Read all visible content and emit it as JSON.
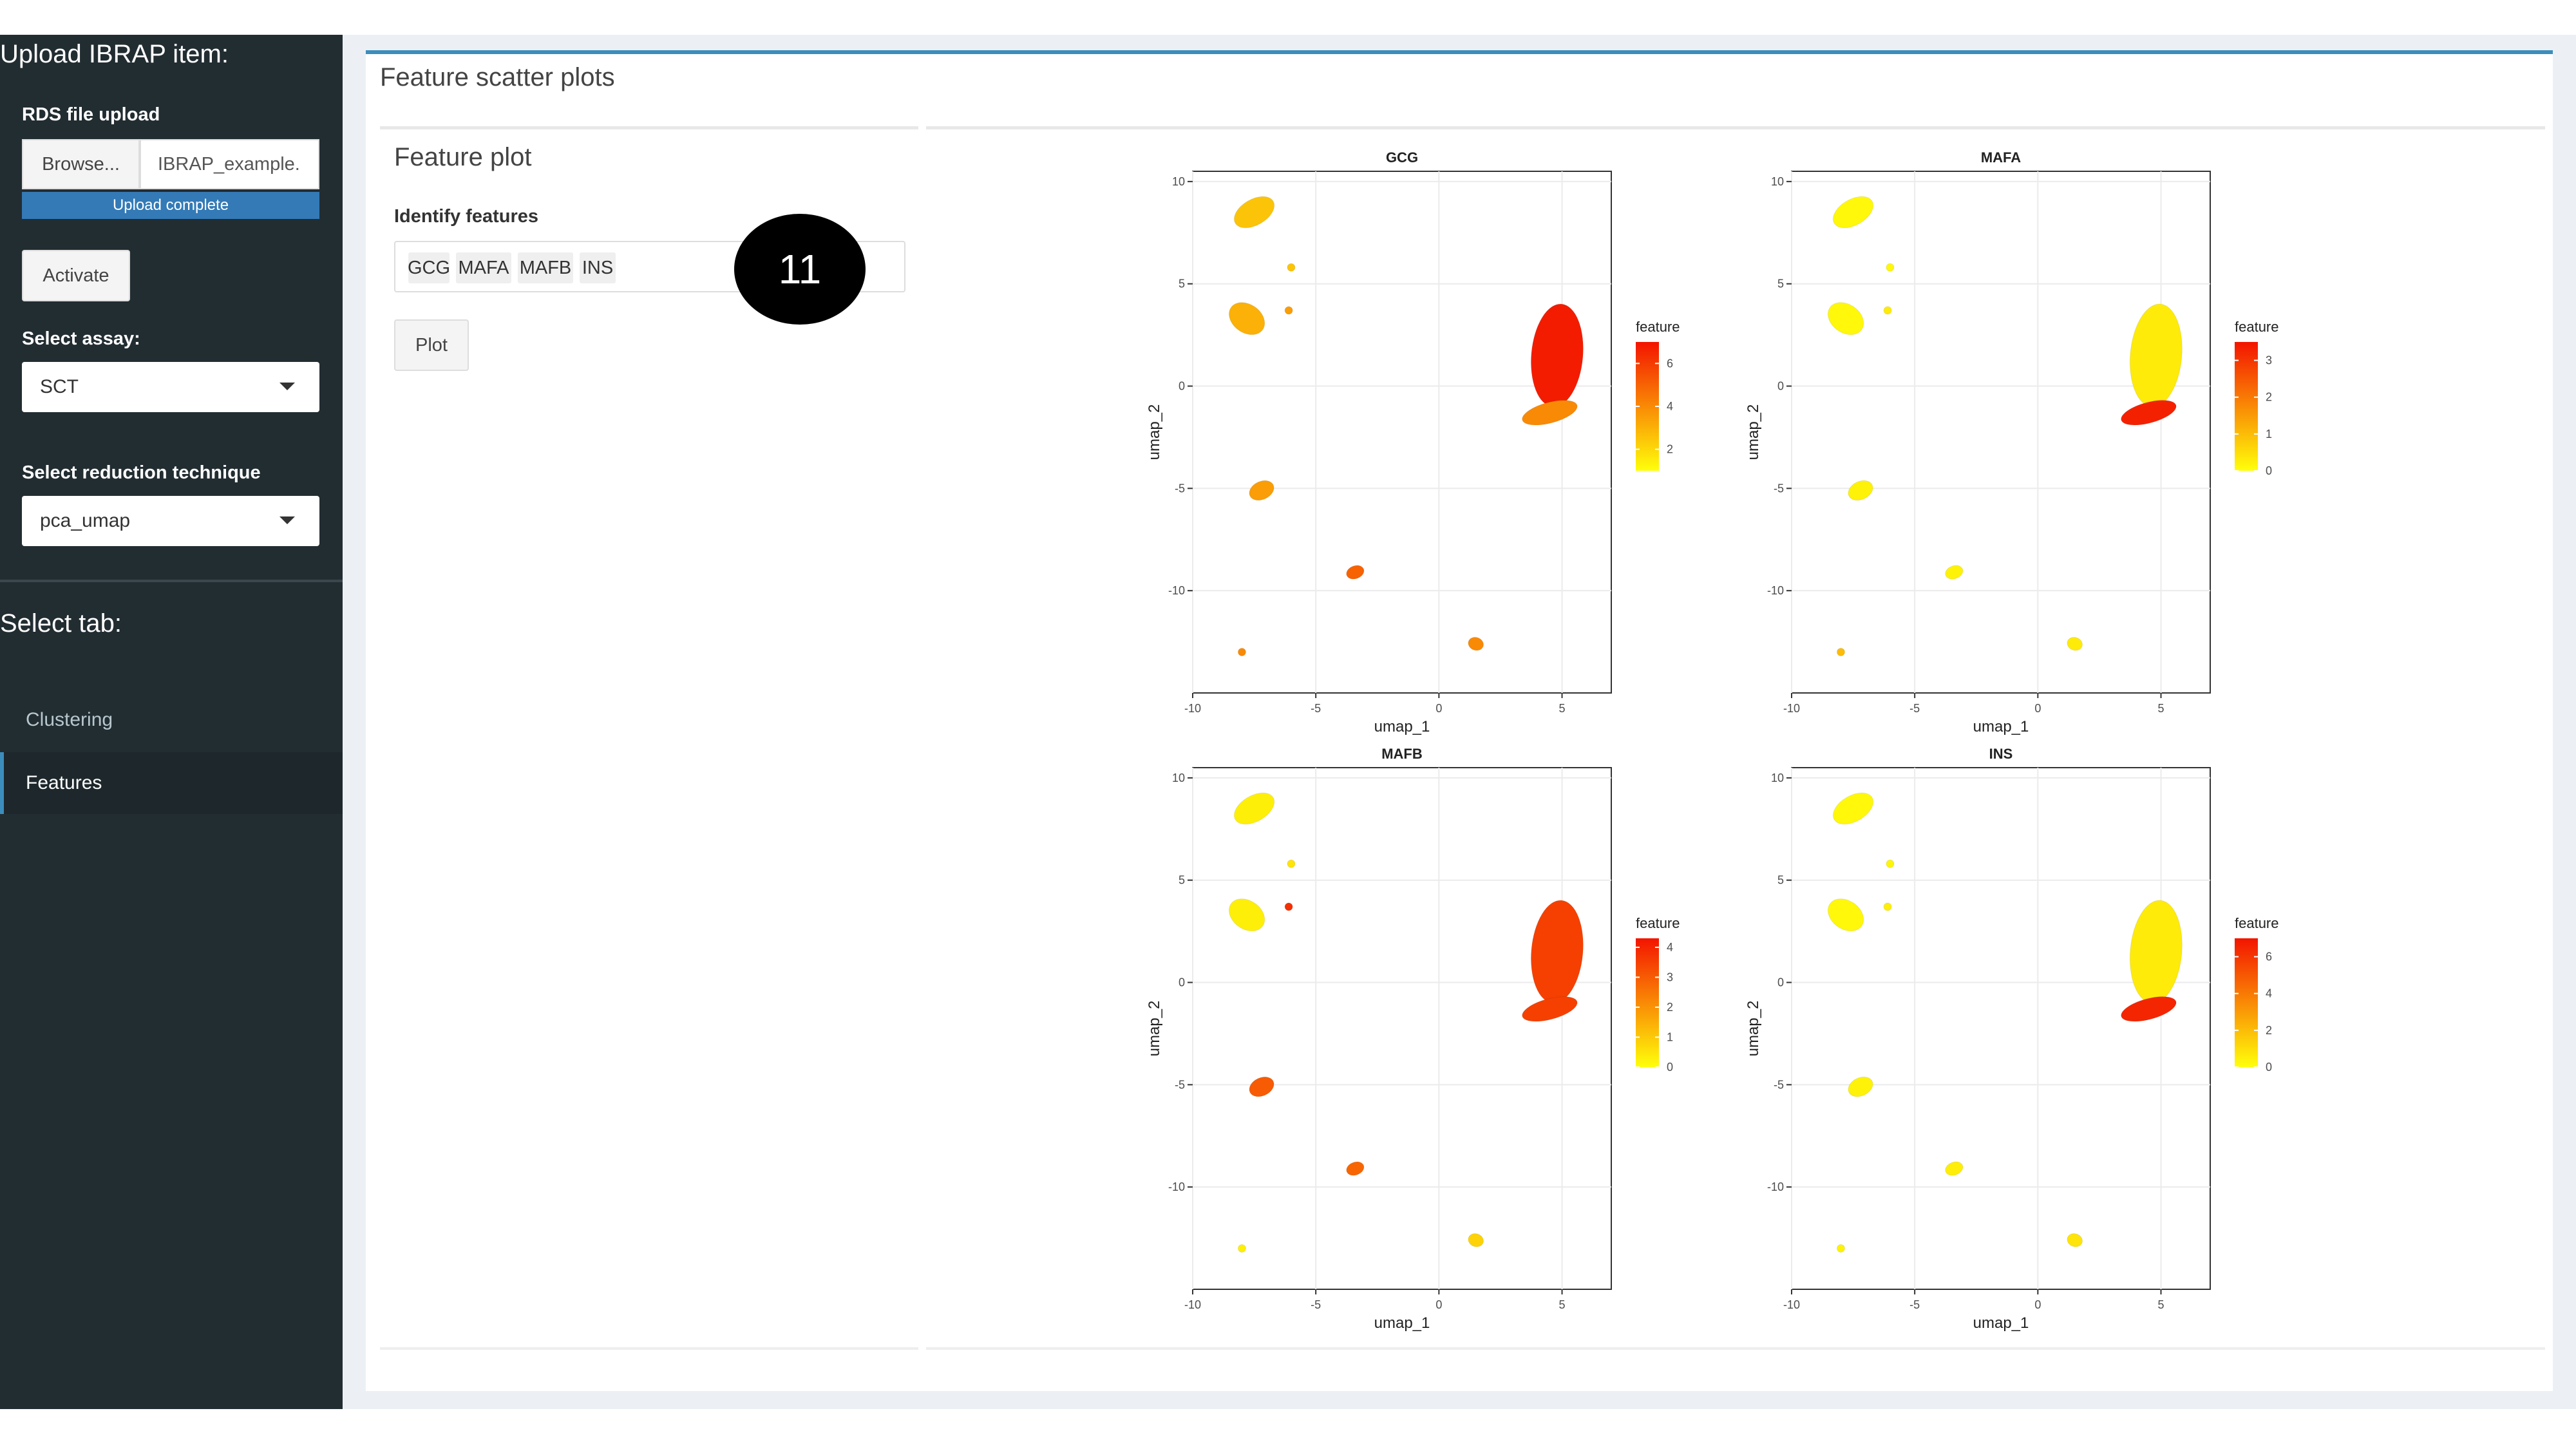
{
  "sidebar": {
    "title": "Upload IBRAP item:",
    "rds_label": "RDS file upload",
    "browse_label": "Browse...",
    "file_name": "IBRAP_example.",
    "upload_status": "Upload complete",
    "activate_label": "Activate",
    "assay_label": "Select assay:",
    "assay_value": "SCT",
    "reduction_label": "Select reduction technique",
    "reduction_value": "pca_umap",
    "tab_heading": "Select tab:",
    "tabs": [
      {
        "label": "Clustering",
        "active": false
      },
      {
        "label": "Features",
        "active": true
      }
    ]
  },
  "main": {
    "box_title": "Feature scatter plots",
    "panel_title": "Feature plot",
    "identify_label": "Identify features",
    "features": [
      "GCG",
      "MAFA",
      "MAFB",
      "INS"
    ],
    "plot_button": "Plot",
    "badge": "11"
  },
  "chart_data": [
    {
      "type": "scatter",
      "title": "GCG",
      "xlabel": "umap_1",
      "ylabel": "umap_2",
      "xlim": [
        -10,
        7
      ],
      "ylim": [
        -15,
        10.5
      ],
      "xticks": [
        -10,
        -5,
        0,
        5
      ],
      "yticks": [
        10,
        5,
        0,
        -5,
        -10
      ],
      "legend_title": "feature",
      "legend_ticks": [
        6,
        4,
        2
      ],
      "legend_range": [
        1,
        7
      ],
      "grid": true,
      "clusters": [
        {
          "x": -7.5,
          "y": 8.5,
          "value": 2.5
        },
        {
          "x": -7.8,
          "y": 3.3,
          "value": 3.0
        },
        {
          "x": -7.2,
          "y": -5.1,
          "value": 3.5
        },
        {
          "x": -3.4,
          "y": -9.1,
          "value": 5.0
        },
        {
          "x": 1.5,
          "y": -12.6,
          "value": 4.0
        },
        {
          "x": -6.1,
          "y": 3.7,
          "value": 3.5
        },
        {
          "x": -6.0,
          "y": 5.8,
          "value": 2.5
        },
        {
          "x": -8.0,
          "y": -13.0,
          "value": 4.0
        },
        {
          "x": 4.8,
          "y": 1.5,
          "value": 6.8
        },
        {
          "x": 4.5,
          "y": -1.3,
          "value": 4.0
        }
      ]
    },
    {
      "type": "scatter",
      "title": "MAFA",
      "xlabel": "umap_1",
      "ylabel": "umap_2",
      "xlim": [
        -10,
        7
      ],
      "ylim": [
        -15,
        10.5
      ],
      "xticks": [
        -10,
        -5,
        0,
        5
      ],
      "yticks": [
        10,
        5,
        0,
        -5,
        -10
      ],
      "legend_title": "feature",
      "legend_ticks": [
        3,
        2,
        1,
        0
      ],
      "legend_range": [
        0,
        3.5
      ],
      "grid": true,
      "clusters": [
        {
          "x": -7.5,
          "y": 8.5,
          "value": 0.1
        },
        {
          "x": -7.8,
          "y": 3.3,
          "value": 0.1
        },
        {
          "x": -7.2,
          "y": -5.1,
          "value": 0.2
        },
        {
          "x": -3.4,
          "y": -9.1,
          "value": 0.2
        },
        {
          "x": 1.5,
          "y": -12.6,
          "value": 0.3
        },
        {
          "x": -6.1,
          "y": 3.7,
          "value": 0.3
        },
        {
          "x": -6.0,
          "y": 5.8,
          "value": 0.1
        },
        {
          "x": -8.0,
          "y": -13.0,
          "value": 1.0
        },
        {
          "x": 4.8,
          "y": 1.5,
          "value": 0.3
        },
        {
          "x": 4.5,
          "y": -1.3,
          "value": 3.3
        }
      ]
    },
    {
      "type": "scatter",
      "title": "MAFB",
      "xlabel": "umap_1",
      "ylabel": "umap_2",
      "xlim": [
        -10,
        7
      ],
      "ylim": [
        -15,
        10.5
      ],
      "xticks": [
        -10,
        -5,
        0,
        5
      ],
      "yticks": [
        10,
        5,
        0,
        -5,
        -10
      ],
      "legend_title": "feature",
      "legend_ticks": [
        4,
        3,
        2,
        1,
        0
      ],
      "legend_range": [
        0,
        4.3
      ],
      "grid": true,
      "clusters": [
        {
          "x": -7.5,
          "y": 8.5,
          "value": 0.3
        },
        {
          "x": -7.8,
          "y": 3.3,
          "value": 0.3
        },
        {
          "x": -7.2,
          "y": -5.1,
          "value": 3.0
        },
        {
          "x": -3.4,
          "y": -9.1,
          "value": 2.8
        },
        {
          "x": 1.5,
          "y": -12.6,
          "value": 0.8
        },
        {
          "x": -6.1,
          "y": 3.7,
          "value": 3.8
        },
        {
          "x": -6.0,
          "y": 5.8,
          "value": 0.5
        },
        {
          "x": -8.0,
          "y": -13.0,
          "value": 0.3
        },
        {
          "x": 4.8,
          "y": 1.5,
          "value": 3.5
        },
        {
          "x": 4.5,
          "y": -1.3,
          "value": 3.5
        }
      ]
    },
    {
      "type": "scatter",
      "title": "INS",
      "xlabel": "umap_1",
      "ylabel": "umap_2",
      "xlim": [
        -10,
        7
      ],
      "ylim": [
        -15,
        10.5
      ],
      "xticks": [
        -10,
        -5,
        0,
        5
      ],
      "yticks": [
        10,
        5,
        0,
        -5,
        -10
      ],
      "legend_title": "feature",
      "legend_ticks": [
        6,
        4,
        2,
        0
      ],
      "legend_range": [
        0,
        7
      ],
      "grid": true,
      "clusters": [
        {
          "x": -7.5,
          "y": 8.5,
          "value": 0.2
        },
        {
          "x": -7.8,
          "y": 3.3,
          "value": 0.2
        },
        {
          "x": -7.2,
          "y": -5.1,
          "value": 0.4
        },
        {
          "x": -3.4,
          "y": -9.1,
          "value": 0.5
        },
        {
          "x": 1.5,
          "y": -12.6,
          "value": 0.8
        },
        {
          "x": -6.1,
          "y": 3.7,
          "value": 0.5
        },
        {
          "x": -6.0,
          "y": 5.8,
          "value": 0.3
        },
        {
          "x": -8.0,
          "y": -13.0,
          "value": 0.4
        },
        {
          "x": 4.8,
          "y": 1.5,
          "value": 0.6
        },
        {
          "x": 4.5,
          "y": -1.3,
          "value": 6.5
        }
      ]
    }
  ]
}
